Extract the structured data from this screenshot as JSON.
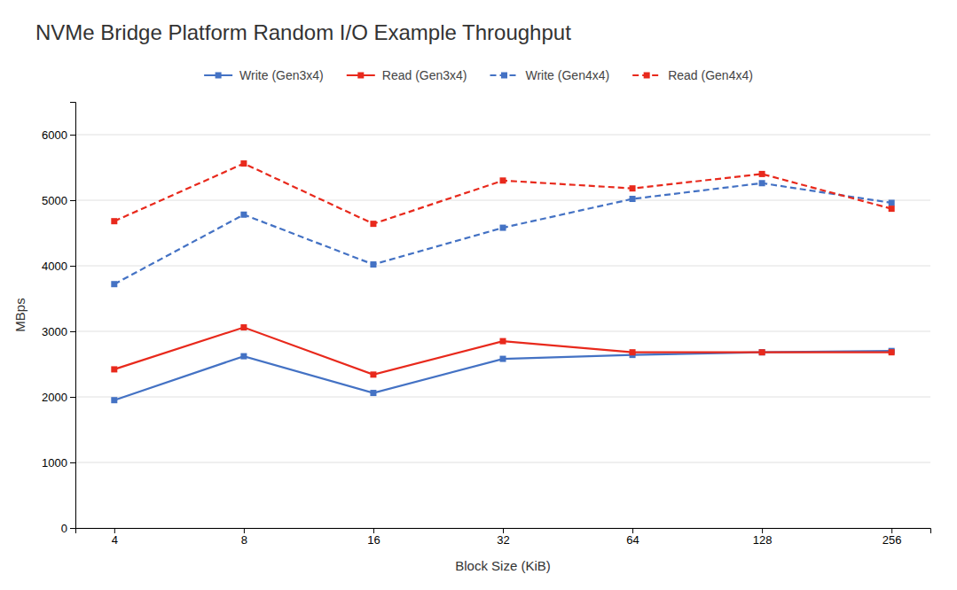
{
  "chart_data": {
    "type": "line",
    "title": "NVMe Bridge Platform Random I/O Example Throughput",
    "xlabel": "Block Size (KiB)",
    "ylabel": "MBps",
    "categories": [
      "4",
      "8",
      "16",
      "32",
      "64",
      "128",
      "256"
    ],
    "series": [
      {
        "name": "Write (Gen3x4)",
        "color": "#4472C4",
        "line_style": "solid",
        "marker": "square",
        "values": [
          1950,
          2620,
          2060,
          2580,
          2640,
          2680,
          2700
        ]
      },
      {
        "name": "Read (Gen3x4)",
        "color": "#E8291C",
        "line_style": "solid",
        "marker": "square",
        "values": [
          2420,
          3060,
          2340,
          2850,
          2680,
          2680,
          2680
        ]
      },
      {
        "name": "Write (Gen4x4)",
        "color": "#4472C4",
        "line_style": "dashed",
        "marker": "square",
        "values": [
          3720,
          4780,
          4020,
          4580,
          5020,
          5260,
          4960
        ]
      },
      {
        "name": "Read (Gen4x4)",
        "color": "#E8291C",
        "line_style": "dashed",
        "marker": "square",
        "values": [
          4680,
          5560,
          4640,
          5300,
          5180,
          5400,
          4870
        ]
      }
    ],
    "ylim": [
      0,
      6500
    ],
    "yticks": [
      0,
      1000,
      2000,
      3000,
      4000,
      5000,
      6000
    ],
    "grid": true,
    "legend": "top"
  }
}
